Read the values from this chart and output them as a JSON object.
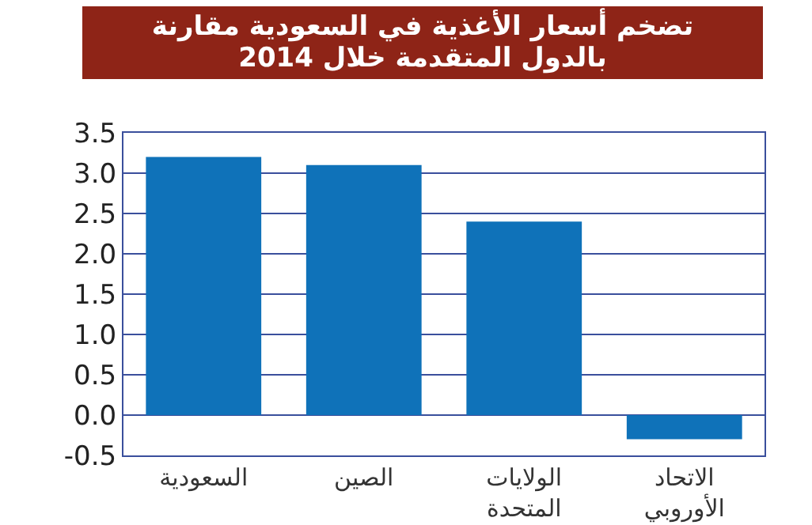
{
  "chart_data": {
    "type": "bar",
    "title": "تضخم أسعار الأغذية في السعودية مقارنة\nبالدول المتقدمة خلال 2014",
    "categories": [
      "السعودية",
      "الصين",
      "الولايات المتحدة",
      "الاتحاد الأوروبي"
    ],
    "values": [
      3.2,
      3.1,
      2.4,
      -0.3
    ],
    "color": "#0f72b9",
    "ylim": [
      -0.5,
      3.5
    ],
    "yticks": [
      {
        "value": -0.5,
        "label": "-0.5"
      },
      {
        "value": 0,
        "label": "0.0"
      },
      0.5,
      {
        "value": 1,
        "label": "1.0"
      },
      1.5,
      {
        "value": 2,
        "label": "2.0"
      },
      2.5,
      {
        "value": 3,
        "label": "3.0"
      },
      3.5
    ],
    "grid": "y"
  }
}
